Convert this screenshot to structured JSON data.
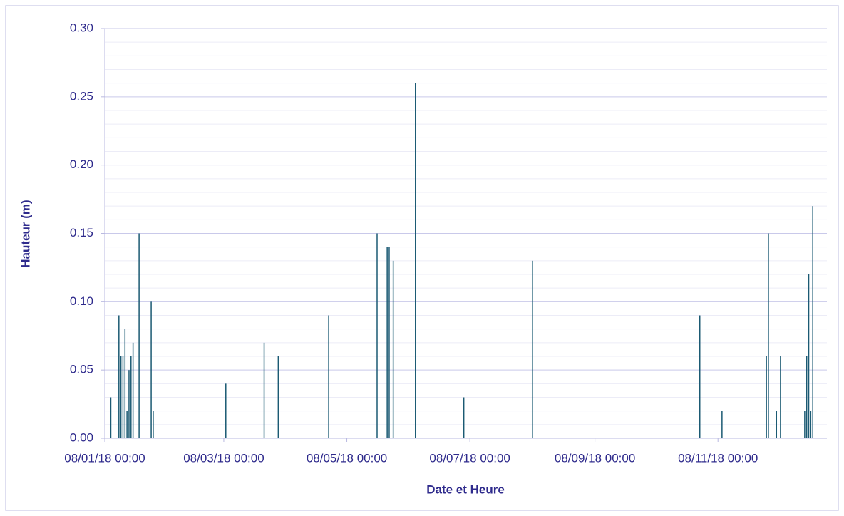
{
  "chart_data": {
    "type": "bar",
    "y_label": "Hauteur (m)",
    "x_label": "Date et Heure",
    "color": "#1b5a73",
    "grid": true,
    "x": [
      "2018-01-11",
      "2018-01-15",
      "2018-01-16",
      "2018-01-17",
      "2018-01-18",
      "2018-01-19",
      "2018-01-20",
      "2018-01-21",
      "2018-01-22",
      "2018-01-25",
      "2018-01-31",
      "2018-02-01",
      "2018-03-09",
      "2018-03-28",
      "2018-04-04",
      "2018-04-29",
      "2018-05-23",
      "2018-05-28",
      "2018-05-29",
      "2018-05-31",
      "2018-06-11",
      "2018-07-05",
      "2018-08-08",
      "2018-10-30",
      "2018-11-10",
      "2018-12-02",
      "2018-12-03",
      "2018-12-07",
      "2018-12-09",
      "2018-12-21",
      "2018-12-22",
      "2018-12-23",
      "2018-12-24",
      "2018-12-25"
    ],
    "values": [
      0.03,
      0.09,
      0.06,
      0.06,
      0.08,
      0.02,
      0.05,
      0.06,
      0.07,
      0.15,
      0.1,
      0.02,
      0.04,
      0.07,
      0.06,
      0.09,
      0.15,
      0.14,
      0.14,
      0.13,
      0.26,
      0.03,
      0.13,
      0.09,
      0.02,
      0.06,
      0.15,
      0.02,
      0.06,
      0.02,
      0.06,
      0.12,
      0.02,
      0.17
    ],
    "xlim": [
      "2018-01-08",
      "2019-01-01"
    ],
    "xticks": [
      {
        "value": "2018-01-08",
        "label": "08/01/18 00:00"
      },
      {
        "value": "2018-03-08",
        "label": "08/03/18 00:00"
      },
      {
        "value": "2018-05-08",
        "label": "08/05/18 00:00"
      },
      {
        "value": "2018-07-08",
        "label": "08/07/18 00:00"
      },
      {
        "value": "2018-09-08",
        "label": "08/09/18 00:00"
      },
      {
        "value": "2018-11-08",
        "label": "08/11/18 00:00"
      }
    ],
    "ylim": [
      0,
      0.3
    ],
    "yticks": [
      {
        "value": 0,
        "label": "0.00"
      },
      {
        "value": 0.05,
        "label": "0.05"
      },
      {
        "value": 0.1,
        "label": "0.10"
      },
      {
        "value": 0.15,
        "label": "0.15"
      },
      {
        "value": 0.2,
        "label": "0.20"
      },
      {
        "value": 0.25,
        "label": "0.25"
      },
      {
        "value": 0.3,
        "label": "0.30"
      }
    ]
  }
}
